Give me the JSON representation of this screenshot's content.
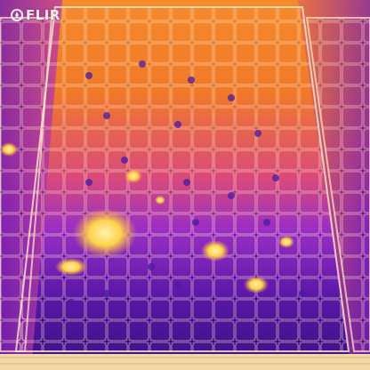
{
  "overlay": {
    "brand_text": "FLIR",
    "brand_icon": "flir-flame-icon"
  },
  "image": {
    "description": "",
    "palette_colors": [
      "#2a0b5c",
      "#5a17a8",
      "#9a2fc4",
      "#d94a7a",
      "#f07a2a",
      "#ffb03a",
      "#ffe79a"
    ]
  }
}
